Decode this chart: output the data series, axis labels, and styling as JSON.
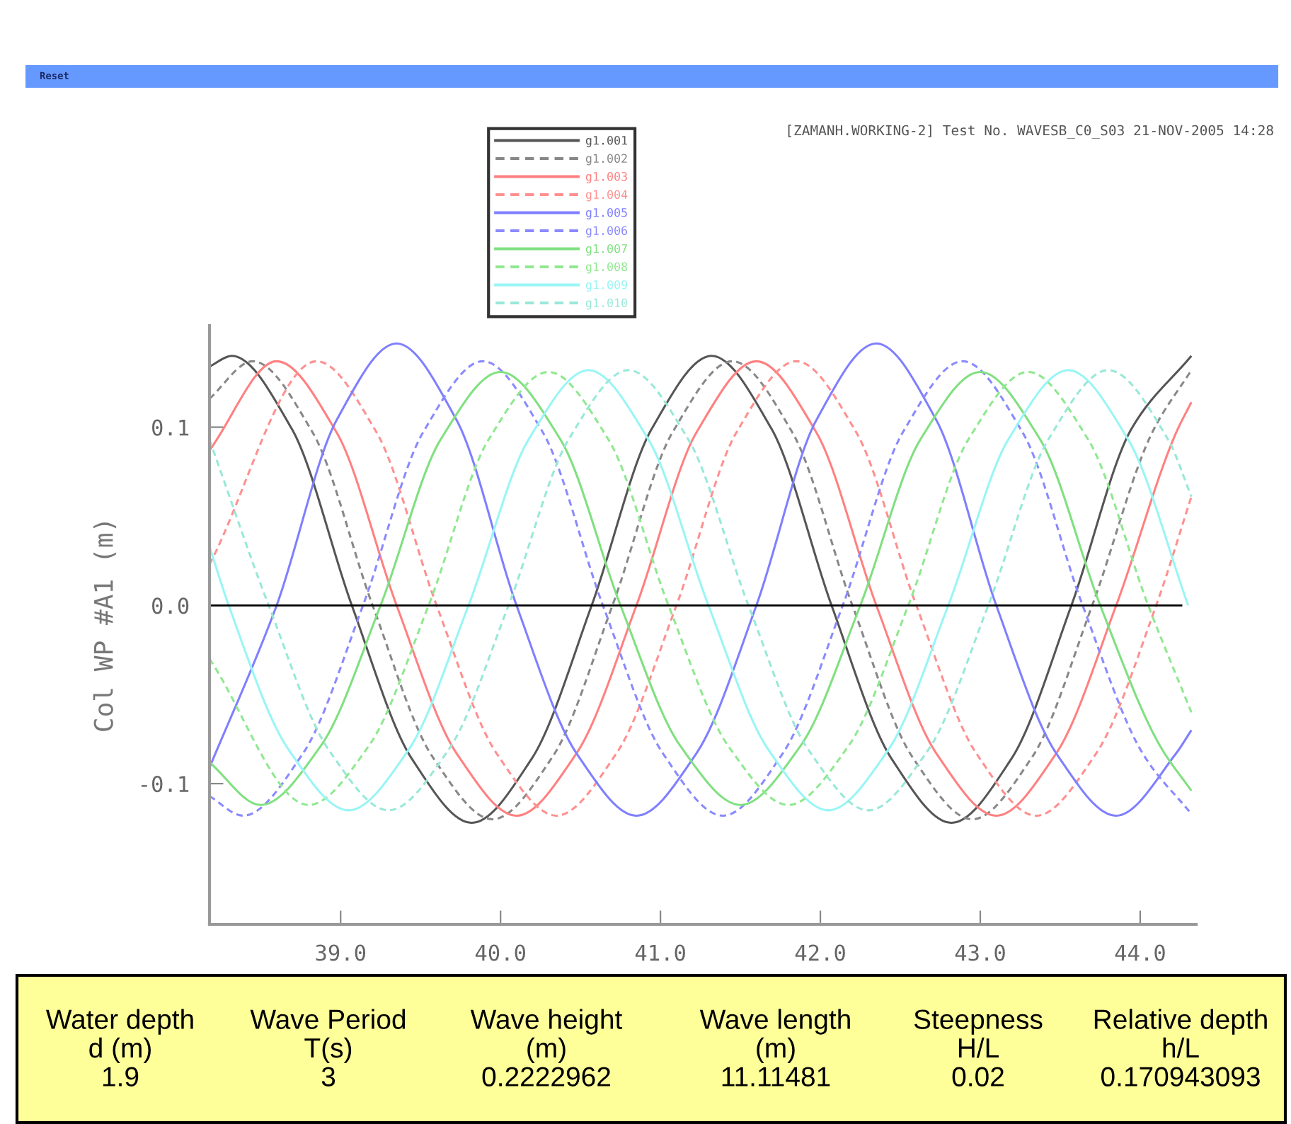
{
  "chart_data": {
    "type": "line",
    "title": "[ZAMANH.WORKING-2] Test No. WAVESB_C0_S03 21-NOV-2005 14:28",
    "ylabel": "Col WP #A1 (m)",
    "xlim": [
      38.18,
      44.35
    ],
    "ylim": [
      -0.179,
      0.157
    ],
    "xticks": [
      {
        "value": 39,
        "label": "39.0"
      },
      {
        "value": 40,
        "label": "40.0"
      },
      {
        "value": 41,
        "label": "41.0"
      },
      {
        "value": 42,
        "label": "42.0"
      },
      {
        "value": 43,
        "label": "43.0"
      },
      {
        "value": 44,
        "label": "44.0"
      }
    ],
    "yticks": [
      {
        "value": -0.1,
        "label": "-0.1"
      },
      {
        "value": 0,
        "label": "0.0"
      },
      {
        "value": 0.1,
        "label": "0.1"
      }
    ],
    "legend": "top",
    "grid": false,
    "ref_lines": [
      {
        "axis": "y",
        "value": 0,
        "color": "#000000"
      }
    ],
    "annotations": [
      "Reset",
      "Water depth\nd (m)\n1.9",
      "Wave Period\nT(s)\n3",
      "Wave height\n(m)\n0.2222962",
      "Wave length\n(m)\n11.11481",
      "Steepness\nH/L\n0.02",
      "Relative depth\nh/L\n0.170943093"
    ],
    "series": [
      {
        "name": "g1.001",
        "color": "#555555",
        "line_style": "solid",
        "x": [
          38.18,
          38.32,
          38.695,
          39.07,
          39.445,
          39.82,
          40.195,
          40.57,
          40.945,
          41.32,
          41.695,
          42.07,
          42.445,
          42.82,
          43.195,
          43.57,
          43.945,
          44.32
        ],
        "values": [
          0.134,
          0.14,
          0.099,
          0,
          -0.086,
          -0.122,
          -0.086,
          0,
          0.099,
          0.14,
          0.099,
          0,
          -0.086,
          -0.122,
          -0.086,
          0,
          0.099,
          0.14
        ]
      },
      {
        "name": "g1.002",
        "color": "#888888",
        "line_style": "dashed",
        "x": [
          38.18,
          38.45,
          38.825,
          39.2,
          39.575,
          39.95,
          40.325,
          40.7,
          41.075,
          41.45,
          41.825,
          42.2,
          42.575,
          42.95,
          43.325,
          43.7,
          44.075,
          44.32
        ],
        "values": [
          0.116,
          0.137,
          0.097,
          0,
          -0.085,
          -0.12,
          -0.085,
          0,
          0.097,
          0.137,
          0.097,
          0,
          -0.085,
          -0.12,
          -0.085,
          0,
          0.097,
          0.132
        ]
      },
      {
        "name": "g1.003",
        "color": "#ff8080",
        "line_style": "solid",
        "x": [
          38.18,
          38.6,
          38.975,
          39.35,
          39.725,
          40.1,
          40.475,
          40.85,
          41.225,
          41.6,
          41.975,
          42.35,
          42.725,
          43.1,
          43.475,
          43.85,
          44.225,
          44.32
        ],
        "values": [
          0.087,
          0.137,
          0.097,
          0,
          -0.083,
          -0.118,
          -0.083,
          0,
          0.097,
          0.137,
          0.097,
          0,
          -0.083,
          -0.118,
          -0.083,
          0,
          0.097,
          0.114
        ]
      },
      {
        "name": "g1.004",
        "color": "#ff9090",
        "line_style": "dashed",
        "x": [
          38.18,
          38.85,
          39.225,
          39.6,
          39.975,
          40.35,
          40.725,
          41.1,
          41.475,
          41.85,
          42.225,
          42.6,
          42.975,
          43.35,
          43.725,
          44.1,
          44.32
        ],
        "values": [
          0.023,
          0.137,
          0.097,
          0,
          -0.083,
          -0.118,
          -0.083,
          0,
          0.097,
          0.137,
          0.097,
          0,
          -0.083,
          -0.118,
          -0.083,
          0,
          0.061
        ]
      },
      {
        "name": "g1.005",
        "color": "#7f7fff",
        "line_style": "solid",
        "x": [
          38.18,
          38.6,
          38.975,
          39.35,
          39.725,
          40.1,
          40.475,
          40.85,
          41.225,
          41.6,
          41.975,
          42.35,
          42.725,
          43.1,
          43.475,
          43.85,
          44.225,
          44.32
        ],
        "values": [
          -0.091,
          0,
          0.104,
          0.147,
          0.104,
          0,
          -0.083,
          -0.118,
          -0.083,
          0,
          0.104,
          0.147,
          0.104,
          0,
          -0.083,
          -0.118,
          -0.083,
          -0.07
        ]
      },
      {
        "name": "g1.006",
        "color": "#8a8aff",
        "line_style": "dashed",
        "x": [
          38.18,
          38.39,
          38.765,
          39.14,
          39.515,
          39.89,
          40.265,
          40.64,
          41.015,
          41.39,
          41.765,
          42.14,
          42.515,
          42.89,
          43.265,
          43.64,
          44.015,
          44.32
        ],
        "values": [
          -0.107,
          -0.118,
          -0.083,
          0,
          0.097,
          0.137,
          0.097,
          0,
          -0.083,
          -0.118,
          -0.083,
          0,
          0.097,
          0.137,
          0.097,
          0,
          -0.083,
          -0.117
        ]
      },
      {
        "name": "g1.007",
        "color": "#80e080",
        "line_style": "solid",
        "x": [
          38.18,
          38.5,
          38.875,
          39.25,
          39.625,
          40.0,
          40.375,
          40.75,
          41.125,
          41.5,
          41.875,
          42.25,
          42.625,
          43.0,
          43.375,
          43.75,
          44.125,
          44.32
        ],
        "values": [
          -0.088,
          -0.112,
          -0.079,
          0,
          0.093,
          0.131,
          0.093,
          0,
          -0.079,
          -0.112,
          -0.079,
          0,
          0.093,
          0.131,
          0.093,
          0,
          -0.079,
          -0.104
        ]
      },
      {
        "name": "g1.008",
        "color": "#90e890",
        "line_style": "dashed",
        "x": [
          38.18,
          38.8,
          39.175,
          39.55,
          39.925,
          40.3,
          40.675,
          41.05,
          41.425,
          41.8,
          42.175,
          42.55,
          42.925,
          43.3,
          43.675,
          44.05,
          44.32
        ],
        "values": [
          -0.03,
          -0.112,
          -0.079,
          0,
          0.093,
          0.131,
          0.093,
          0,
          -0.079,
          -0.112,
          -0.079,
          0,
          0.093,
          0.131,
          0.093,
          0,
          -0.06
        ]
      },
      {
        "name": "g1.009",
        "color": "#99f5f5",
        "line_style": "solid",
        "x": [
          38.18,
          38.3,
          38.675,
          39.05,
          39.425,
          39.8,
          40.175,
          40.55,
          40.925,
          41.3,
          41.675,
          42.05,
          42.425,
          42.8,
          43.175,
          43.55,
          43.925,
          44.3
        ],
        "values": [
          0.033,
          0,
          -0.081,
          -0.115,
          -0.081,
          0,
          0.093,
          0.132,
          0.093,
          0,
          -0.081,
          -0.115,
          -0.081,
          0,
          0.093,
          0.132,
          0.093,
          0
        ]
      },
      {
        "name": "g1.010",
        "color": "#99e8d8",
        "line_style": "dashed",
        "x": [
          38.18,
          38.55,
          38.925,
          39.3,
          39.675,
          40.05,
          40.425,
          40.8,
          41.175,
          41.55,
          41.925,
          42.3,
          42.675,
          43.05,
          43.425,
          43.8,
          44.175,
          44.32
        ],
        "values": [
          0.093,
          0,
          -0.081,
          -0.115,
          -0.081,
          0,
          0.093,
          0.132,
          0.093,
          0,
          -0.081,
          -0.115,
          -0.081,
          0,
          0.093,
          0.132,
          0.093,
          0.061
        ]
      }
    ]
  }
}
